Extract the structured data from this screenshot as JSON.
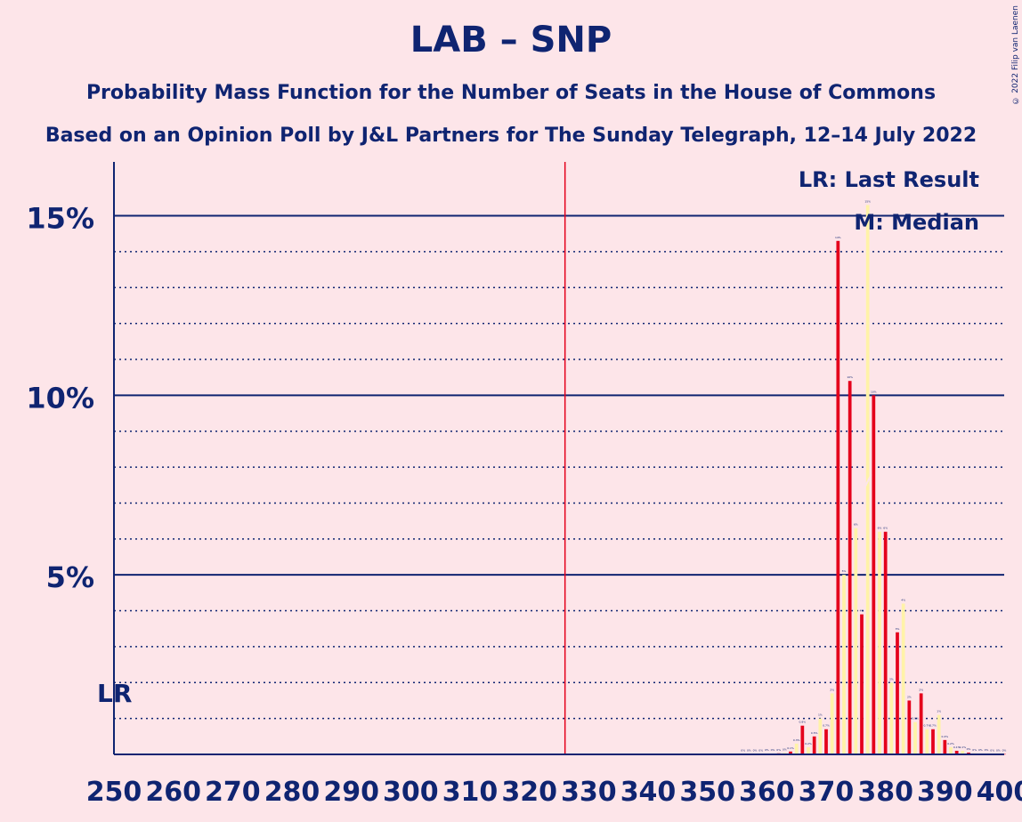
{
  "title": "LAB – SNP",
  "subtitle1": "Probability Mass Function for the Number of Seats in the House of Commons",
  "subtitle2": "Based on an Opinion Poll by J&L Partners for The Sunday Telegraph, 12–14 July 2022",
  "copyright": "© 2022 Filip van Laenen",
  "legend": {
    "lr": "LR: Last Result",
    "m": "M: Median"
  },
  "lr_label": "LR",
  "colors": {
    "background": "#fde5e9",
    "axis": "#0f2471",
    "lab": "#e4001b",
    "alt": "#fff3a8",
    "majority_line": "#e4001b"
  },
  "chart_data": {
    "type": "bar",
    "xlim": [
      250,
      400
    ],
    "ylim": [
      0,
      16.5
    ],
    "x_ticks": [
      250,
      260,
      270,
      280,
      290,
      300,
      310,
      320,
      330,
      340,
      350,
      360,
      370,
      380,
      390,
      400
    ],
    "x_tick_labels": [
      "250",
      "260",
      "270",
      "280",
      "290",
      "300",
      "310",
      "320",
      "330",
      "340",
      "350",
      "360",
      "370",
      "380",
      "390",
      "400"
    ],
    "y_major_ticks": [
      5,
      10,
      15
    ],
    "y_tick_labels": [
      "5%",
      "10%",
      "15%"
    ],
    "y_minor_ticks": [
      1,
      2,
      3,
      4,
      6,
      7,
      8,
      9,
      11,
      12,
      13,
      14
    ],
    "majority": 326,
    "last_result": 250,
    "last_result_value": 1.8,
    "median": 377,
    "seats": [
      356,
      357,
      358,
      359,
      360,
      361,
      362,
      363,
      364,
      365,
      366,
      367,
      368,
      369,
      370,
      371,
      372,
      373,
      374,
      375,
      376,
      377,
      378,
      379,
      380,
      381,
      382,
      383,
      384,
      385,
      386,
      387,
      388,
      389,
      390,
      391,
      392,
      393,
      394,
      395,
      396,
      397,
      398,
      399,
      400
    ],
    "values": [
      0.01,
      0.01,
      0.01,
      0.01,
      0.02,
      0.02,
      0.03,
      0.04,
      0.08,
      0.3,
      0.8,
      0.2,
      0.5,
      1.0,
      0.7,
      1.7,
      14.3,
      5.0,
      10.4,
      6.3,
      3.9,
      15.3,
      10.0,
      6.2,
      6.2,
      2.0,
      3.4,
      4.2,
      1.5,
      0.9,
      1.7,
      0.7,
      0.7,
      1.1,
      0.4,
      0.2,
      0.1,
      0.1,
      0.05,
      0.03,
      0.02,
      0.02,
      0.01,
      0.01,
      0.01
    ],
    "value_labels": [
      "0%",
      "0%",
      "0%",
      "0%",
      "0%",
      "0%",
      "0%",
      "0%",
      "0.1%",
      "0.3%",
      "0.8%",
      "0.2%",
      "0.5%",
      "1%",
      "0.7%",
      "2%",
      "14%",
      "5%",
      "10%",
      "6%",
      "4%",
      "15%",
      "10%",
      "6%",
      "6%",
      "2%",
      "3%",
      "4%",
      "2%",
      "0.9%",
      "2%",
      "0.7%",
      "0.7%",
      "1%",
      "0.4%",
      "0.2%",
      "0.1%",
      "0.1%",
      "0%",
      "0%",
      "0%",
      "0%",
      "0%",
      "0%",
      "0%"
    ]
  }
}
